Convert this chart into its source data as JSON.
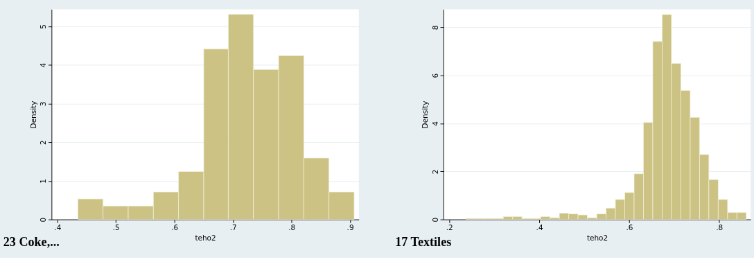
{
  "chart_data": [
    {
      "type": "histogram",
      "title": "23 Coke,...",
      "xlabel": "teho2",
      "ylabel": "Density",
      "color": "#cbc283",
      "grid": "y",
      "bins": [
        0.435,
        0.478,
        0.521,
        0.564,
        0.607,
        0.65,
        0.692,
        0.735,
        0.778,
        0.821,
        0.864,
        0.907
      ],
      "values": [
        0.53,
        0.35,
        0.35,
        0.71,
        1.24,
        4.41,
        5.31,
        3.88,
        4.24,
        1.59,
        0.71
      ],
      "xlim": [
        0.39,
        0.915
      ],
      "ylim": [
        0,
        5.44
      ],
      "xticks": [
        {
          "value": 0.4,
          "label": ".4"
        },
        {
          "value": 0.5,
          "label": ".5"
        },
        {
          "value": 0.6,
          "label": ".6"
        },
        {
          "value": 0.7,
          "label": ".7"
        },
        {
          "value": 0.8,
          "label": ".8"
        },
        {
          "value": 0.9,
          "label": ".9"
        }
      ],
      "yticks": [
        0,
        1,
        2,
        3,
        4,
        5
      ]
    },
    {
      "type": "histogram",
      "title": "17 Textiles",
      "xlabel": "teho2",
      "ylabel": "Density",
      "color": "#cbc283",
      "grid": "y",
      "bins": [
        0.237,
        0.2578,
        0.2785,
        0.2993,
        0.3201,
        0.3409,
        0.3616,
        0.3824,
        0.4032,
        0.4239,
        0.4447,
        0.4655,
        0.4862,
        0.507,
        0.5278,
        0.5486,
        0.5693,
        0.5901,
        0.6109,
        0.6316,
        0.6524,
        0.6732,
        0.6939,
        0.7147,
        0.7355,
        0.7563,
        0.777,
        0.7978,
        0.8186,
        0.8393,
        0.8601
      ],
      "values": [
        0.04,
        0.04,
        0.04,
        0.04,
        0.12,
        0.12,
        0.04,
        0.04,
        0.12,
        0.07,
        0.26,
        0.23,
        0.19,
        0.07,
        0.23,
        0.47,
        0.83,
        1.12,
        1.9,
        4.04,
        7.41,
        8.53,
        6.5,
        5.37,
        4.25,
        2.7,
        1.66,
        0.83,
        0.29,
        0.29
      ],
      "xlim": [
        0.187,
        0.87
      ],
      "ylim": [
        0,
        8.75
      ],
      "xticks": [
        {
          "value": 0.2,
          "label": ".2"
        },
        {
          "value": 0.4,
          "label": ".4"
        },
        {
          "value": 0.6,
          "label": ".6"
        },
        {
          "value": 0.8,
          "label": ".8"
        }
      ],
      "yticks": [
        0,
        2,
        4,
        6,
        8
      ]
    }
  ]
}
